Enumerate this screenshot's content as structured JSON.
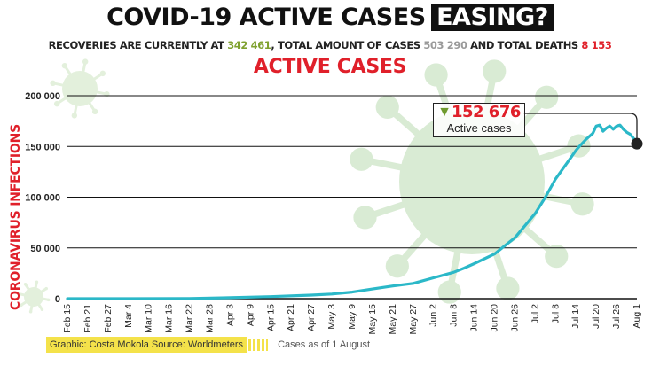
{
  "header": {
    "title_main": "COVID-19 ACTIVE CASES",
    "title_highlight": "EASING?",
    "subtitle": {
      "recoveries_label": "RECOVERIES ARE CURRENTLY AT",
      "recoveries_value": "342 461",
      "total_label": ", TOTAL AMOUNT OF CASES",
      "total_value": "503 290",
      "deaths_label": "AND TOTAL DEATHS",
      "deaths_value": "8 153"
    }
  },
  "colors": {
    "line": "#2bb8c8",
    "virus": "#d9ebd4",
    "virus_small": "#e3f0dc",
    "grid": "#111111",
    "highlight_red": "#e0202a",
    "highlight_green": "#7fa12e"
  },
  "icons": [
    "coronavirus-icon",
    "down-arrow-icon"
  ],
  "callout": {
    "value": "152 676",
    "label": "Active cases"
  },
  "footer": {
    "credit": "Graphic: Costa Mokola  Source: Worldmeters",
    "as_of": "Cases as of 1 August"
  },
  "chart_data": {
    "type": "line",
    "title": "ACTIVE CASES",
    "xlabel": "",
    "ylabel": "CORONAVIRUS INFECTIONS",
    "ylim": [
      0,
      200000
    ],
    "grid": true,
    "yticks": [
      0,
      50000,
      100000,
      150000,
      200000
    ],
    "ytick_labels": [
      "0",
      "50 000",
      "100 000",
      "150 000",
      "200 000"
    ],
    "x_range": [
      "Feb 15",
      "Aug 1"
    ],
    "xtick_labels": [
      "Feb 15",
      "Feb 21",
      "Feb 27",
      "Mar 4",
      "Mar 10",
      "Mar 16",
      "Mar 22",
      "Mar 28",
      "Apr 3",
      "Apr 9",
      "Apr 15",
      "Apr 21",
      "Apr 27",
      "May 3",
      "May 9",
      "May 15",
      "May 21",
      "May 27",
      "Jun 2",
      "Jun 8",
      "Jun 14",
      "Jun 20",
      "Jun 26",
      "Jul 2",
      "Jul 8",
      "Jul 14",
      "Jul 20",
      "Jul 26",
      "Aug 1"
    ],
    "series": [
      {
        "x": [
          "Feb 15",
          "Mar 4",
          "Mar 22",
          "Apr 3",
          "Apr 15",
          "Apr 27",
          "May 3",
          "May 9",
          "May 15",
          "May 21",
          "May 27",
          "Jun 2",
          "Jun 8",
          "Jun 11",
          "Jun 14",
          "Jun 20",
          "Jun 26",
          "Jul 2",
          "Jul 5",
          "Jul 8",
          "Jul 11",
          "Jul 14",
          "Jul 15",
          "Jul 17",
          "Jul 19",
          "Jul 20",
          "Jul 21",
          "Jul 22",
          "Jul 23",
          "Jul 24",
          "Jul 25",
          "Jul 26",
          "Jul 27",
          "Jul 28",
          "Jul 29",
          "Jul 30",
          "Jul 31",
          "Aug 1"
        ],
        "values": [
          0,
          0,
          100,
          1000,
          2000,
          3500,
          4500,
          6500,
          9500,
          12500,
          15000,
          20500,
          26000,
          30000,
          34500,
          44000,
          60000,
          84000,
          100000,
          118000,
          132000,
          146000,
          150000,
          157000,
          163000,
          170000,
          171000,
          165000,
          168000,
          170000,
          167000,
          170000,
          171000,
          167000,
          164000,
          162000,
          158000,
          152676
        ]
      }
    ],
    "annotations": [
      "152 676",
      "Active cases"
    ]
  }
}
